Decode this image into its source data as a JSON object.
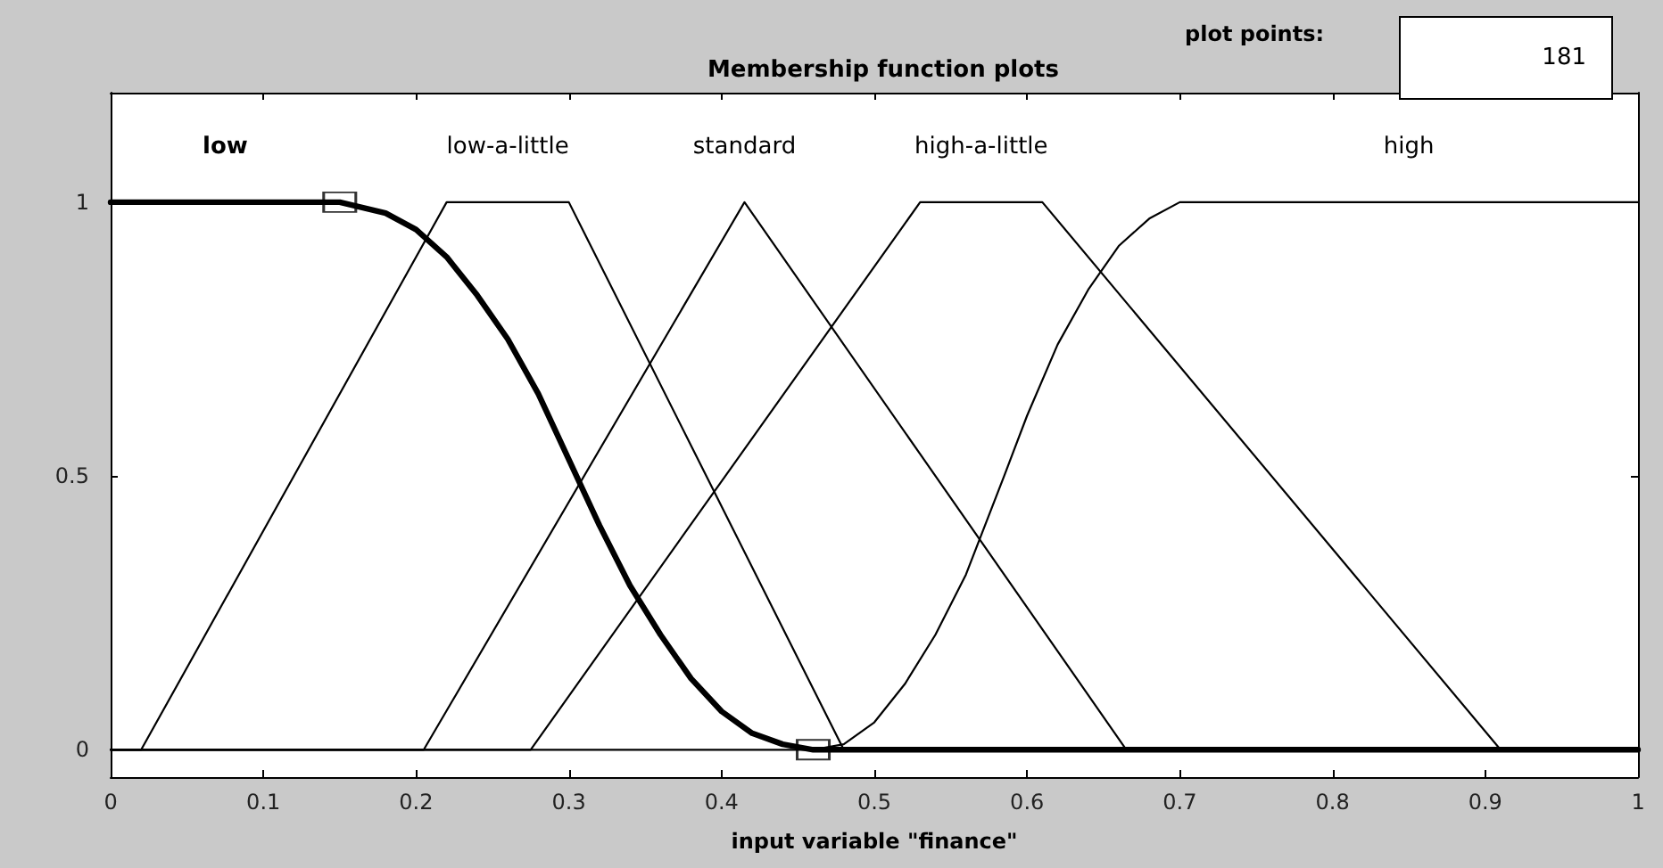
{
  "chart_data": {
    "type": "line",
    "title": "Membership function plots",
    "xlabel": "input variable \"finance\"",
    "annotations": [
      "plot points:",
      "181"
    ],
    "xlim": [
      0,
      1
    ],
    "ylim": [
      -0.05,
      1.2
    ],
    "xticks": [
      0,
      0.1,
      0.2,
      0.3,
      0.4,
      0.5,
      0.6,
      0.7,
      0.8,
      0.9,
      1
    ],
    "yticks": [
      0,
      0.5,
      1
    ],
    "marker": "none",
    "line_style": "solid",
    "series": [
      {
        "name": "low",
        "color": "#000000",
        "x": [
          0,
          0.15,
          0.18,
          0.2,
          0.22,
          0.24,
          0.26,
          0.28,
          0.305,
          0.32,
          0.34,
          0.36,
          0.38,
          0.4,
          0.42,
          0.44,
          0.46,
          1
        ],
        "values": [
          1,
          1,
          0.98,
          0.95,
          0.9,
          0.83,
          0.75,
          0.65,
          0.5,
          0.41,
          0.3,
          0.21,
          0.13,
          0.07,
          0.03,
          0.01,
          0,
          0
        ]
      },
      {
        "name": "low-a-little",
        "color": "#000000",
        "x": [
          0,
          0.02,
          0.22,
          0.3,
          0.48,
          1
        ],
        "values": [
          0,
          0,
          1,
          1,
          0,
          0
        ]
      },
      {
        "name": "standard",
        "color": "#000000",
        "x": [
          0,
          0.205,
          0.415,
          0.665,
          1
        ],
        "values": [
          0,
          0,
          1,
          0,
          0
        ]
      },
      {
        "name": "high-a-little",
        "color": "#000000",
        "x": [
          0,
          0.275,
          0.53,
          0.61,
          0.91,
          1
        ],
        "values": [
          0,
          0,
          1,
          1,
          0,
          0
        ]
      },
      {
        "name": "high",
        "color": "#000000",
        "x": [
          0,
          0.46,
          0.48,
          0.5,
          0.52,
          0.54,
          0.56,
          0.585,
          0.6,
          0.62,
          0.64,
          0.66,
          0.68,
          0.7,
          0.71,
          1
        ],
        "values": [
          0,
          0,
          0.01,
          0.05,
          0.12,
          0.21,
          0.32,
          0.5,
          0.61,
          0.74,
          0.84,
          0.92,
          0.97,
          1,
          1,
          1
        ]
      },
      {
        "type": "scatter",
        "marker": "square",
        "color": "#000000",
        "x": [
          0.15,
          0.46
        ],
        "values": [
          1,
          0
        ]
      }
    ]
  }
}
